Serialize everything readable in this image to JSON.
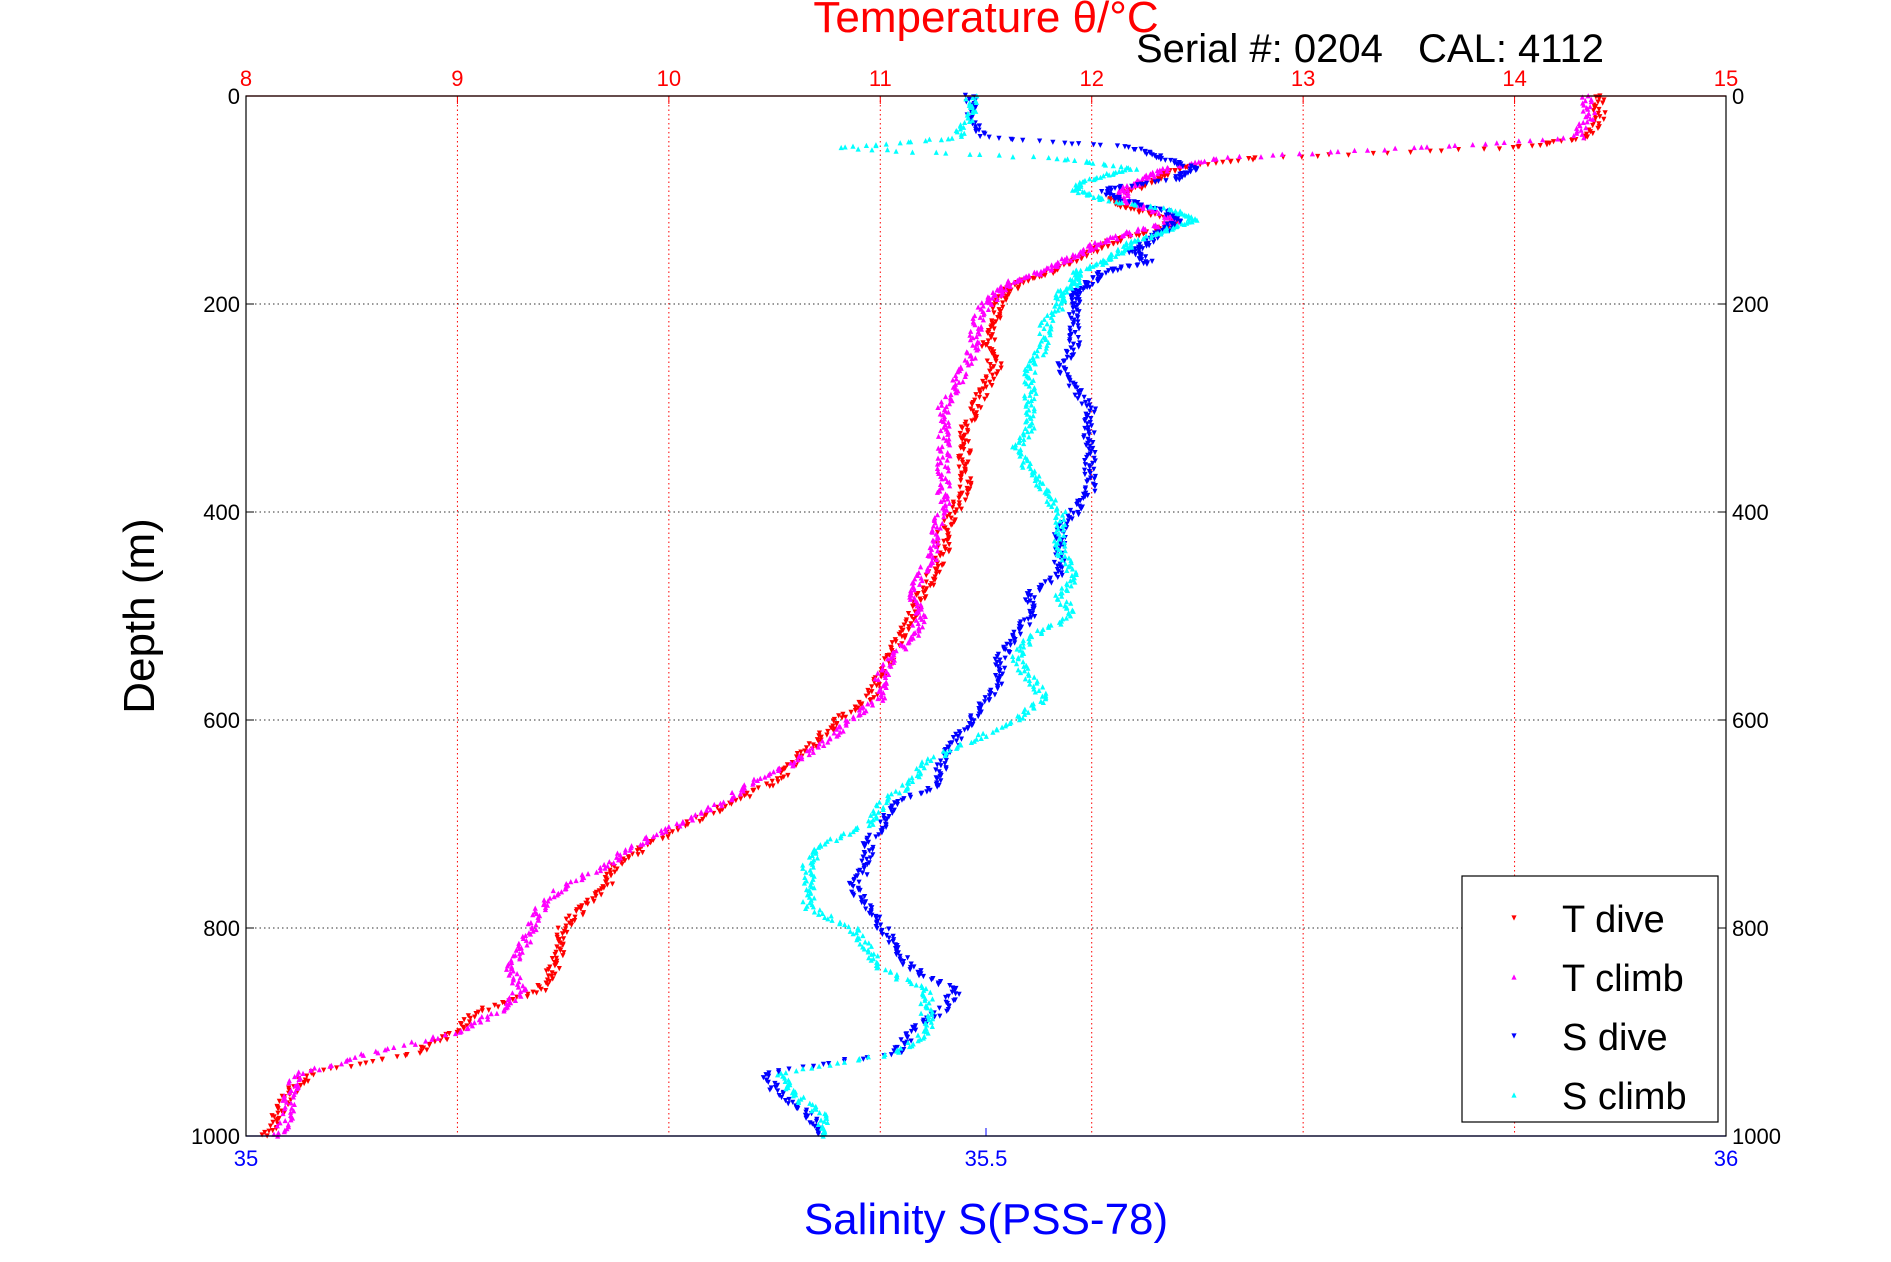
{
  "header": {
    "serial_text": "Serial #: 0204",
    "cal_text": "CAL: 4112"
  },
  "chart_data": {
    "type": "scatter",
    "title": "Temperature θ/°C",
    "ylabel": "Depth (m)",
    "xlabel": "Salinity S(PSS-78)",
    "ylim": [
      1000,
      0
    ],
    "yticks": [
      "0",
      "200",
      "400",
      "600",
      "800",
      "1000"
    ],
    "temperature_axis": {
      "label": "Temperature θ/°C",
      "range": [
        8,
        15
      ],
      "ticks": [
        "8",
        "9",
        "10",
        "11",
        "12",
        "13",
        "14",
        "15"
      ],
      "color": "#ff0000"
    },
    "salinity_axis": {
      "label": "Salinity S(PSS-78)",
      "range": [
        35,
        36
      ],
      "ticks": [
        "35",
        "35.5",
        "36"
      ],
      "color": "#0000ff"
    },
    "grid": true,
    "legend_position": "bottom-right",
    "series": [
      {
        "name": "T dive",
        "axis": "temperature",
        "color": "#ff0000",
        "marker": "triangle-down",
        "depth": [
          0,
          20,
          40,
          50,
          60,
          70,
          80,
          90,
          100,
          110,
          120,
          130,
          140,
          150,
          160,
          170,
          180,
          190,
          200,
          220,
          240,
          260,
          280,
          300,
          320,
          340,
          360,
          380,
          400,
          420,
          440,
          460,
          480,
          500,
          520,
          540,
          560,
          580,
          600,
          620,
          640,
          660,
          680,
          700,
          720,
          740,
          760,
          780,
          800,
          820,
          840,
          860,
          880,
          900,
          920,
          940,
          960,
          980,
          1000
        ],
        "values": [
          14.4,
          14.4,
          14.35,
          14.0,
          12.8,
          12.4,
          12.3,
          12.2,
          12.1,
          12.2,
          12.4,
          12.3,
          12.1,
          12.0,
          11.9,
          11.8,
          11.65,
          11.6,
          11.55,
          11.55,
          11.5,
          11.55,
          11.5,
          11.45,
          11.4,
          11.4,
          11.4,
          11.4,
          11.35,
          11.3,
          11.3,
          11.25,
          11.2,
          11.15,
          11.1,
          11.05,
          11.0,
          10.95,
          10.8,
          10.7,
          10.6,
          10.5,
          10.3,
          10.1,
          9.9,
          9.75,
          9.7,
          9.6,
          9.5,
          9.5,
          9.45,
          9.4,
          9.1,
          9.0,
          8.8,
          8.3,
          8.2,
          8.15,
          8.1
        ]
      },
      {
        "name": "T climb",
        "axis": "temperature",
        "color": "#ff00ff",
        "marker": "triangle-up",
        "depth": [
          0,
          20,
          40,
          50,
          60,
          70,
          80,
          90,
          100,
          110,
          120,
          130,
          140,
          150,
          160,
          170,
          180,
          190,
          200,
          220,
          240,
          260,
          280,
          300,
          320,
          340,
          360,
          380,
          400,
          420,
          440,
          460,
          480,
          500,
          520,
          540,
          560,
          580,
          600,
          620,
          640,
          660,
          680,
          700,
          720,
          740,
          760,
          780,
          800,
          820,
          840,
          860,
          880,
          900,
          920,
          940,
          960,
          980,
          1000
        ],
        "values": [
          14.35,
          14.35,
          14.3,
          13.5,
          12.6,
          12.35,
          12.25,
          12.15,
          12.15,
          12.3,
          12.4,
          12.2,
          12.05,
          11.95,
          11.85,
          11.75,
          11.6,
          11.55,
          11.5,
          11.45,
          11.45,
          11.4,
          11.35,
          11.3,
          11.3,
          11.3,
          11.3,
          11.3,
          11.3,
          11.25,
          11.25,
          11.2,
          11.15,
          11.2,
          11.15,
          11.05,
          11.0,
          11.0,
          10.85,
          10.75,
          10.6,
          10.4,
          10.25,
          10.05,
          9.85,
          9.7,
          9.5,
          9.4,
          9.35,
          9.3,
          9.25,
          9.3,
          9.2,
          9.0,
          8.6,
          8.25,
          8.2,
          8.2,
          8.15
        ]
      },
      {
        "name": "S dive",
        "axis": "salinity",
        "color": "#0000ff",
        "marker": "triangle-down",
        "depth": [
          0,
          20,
          40,
          50,
          60,
          70,
          80,
          90,
          100,
          110,
          120,
          130,
          140,
          150,
          160,
          170,
          180,
          190,
          200,
          220,
          240,
          260,
          280,
          300,
          320,
          340,
          360,
          380,
          400,
          420,
          440,
          460,
          480,
          500,
          520,
          540,
          560,
          580,
          600,
          620,
          640,
          660,
          680,
          700,
          720,
          740,
          760,
          780,
          800,
          820,
          840,
          860,
          880,
          900,
          920,
          940,
          960,
          980,
          1000
        ],
        "values": [
          35.49,
          35.49,
          35.5,
          35.6,
          35.62,
          35.64,
          35.63,
          35.58,
          35.59,
          35.62,
          35.63,
          35.62,
          35.61,
          35.6,
          35.61,
          35.58,
          35.57,
          35.56,
          35.56,
          35.56,
          35.56,
          35.55,
          35.56,
          35.57,
          35.57,
          35.57,
          35.57,
          35.57,
          35.56,
          35.55,
          35.55,
          35.55,
          35.53,
          35.53,
          35.52,
          35.51,
          35.51,
          35.5,
          35.49,
          35.48,
          35.47,
          35.47,
          35.44,
          35.43,
          35.42,
          35.42,
          35.41,
          35.42,
          35.43,
          35.44,
          35.45,
          35.48,
          35.47,
          35.45,
          35.44,
          35.35,
          35.36,
          35.38,
          35.39
        ]
      },
      {
        "name": "S climb",
        "axis": "salinity",
        "color": "#00ffff",
        "marker": "triangle-up",
        "depth": [
          0,
          20,
          40,
          50,
          60,
          70,
          80,
          90,
          100,
          110,
          120,
          130,
          140,
          150,
          160,
          170,
          180,
          190,
          200,
          220,
          240,
          260,
          280,
          300,
          320,
          340,
          360,
          380,
          400,
          420,
          440,
          460,
          480,
          500,
          520,
          540,
          560,
          580,
          600,
          620,
          640,
          660,
          680,
          700,
          720,
          740,
          760,
          780,
          800,
          820,
          840,
          860,
          880,
          900,
          920,
          940,
          960,
          980,
          1000
        ],
        "values": [
          35.49,
          35.49,
          35.48,
          35.4,
          35.55,
          35.6,
          35.57,
          35.56,
          35.58,
          35.63,
          35.64,
          35.62,
          35.6,
          35.59,
          35.58,
          35.56,
          35.56,
          35.55,
          35.55,
          35.54,
          35.54,
          35.53,
          35.53,
          35.53,
          35.53,
          35.52,
          35.53,
          35.54,
          35.55,
          35.55,
          35.55,
          35.56,
          35.55,
          35.56,
          35.53,
          35.52,
          35.53,
          35.54,
          35.52,
          35.49,
          35.46,
          35.45,
          35.43,
          35.42,
          35.39,
          35.38,
          35.38,
          35.38,
          35.41,
          35.42,
          35.43,
          35.46,
          35.46,
          35.46,
          35.44,
          35.36,
          35.37,
          35.39,
          35.39
        ]
      }
    ]
  }
}
